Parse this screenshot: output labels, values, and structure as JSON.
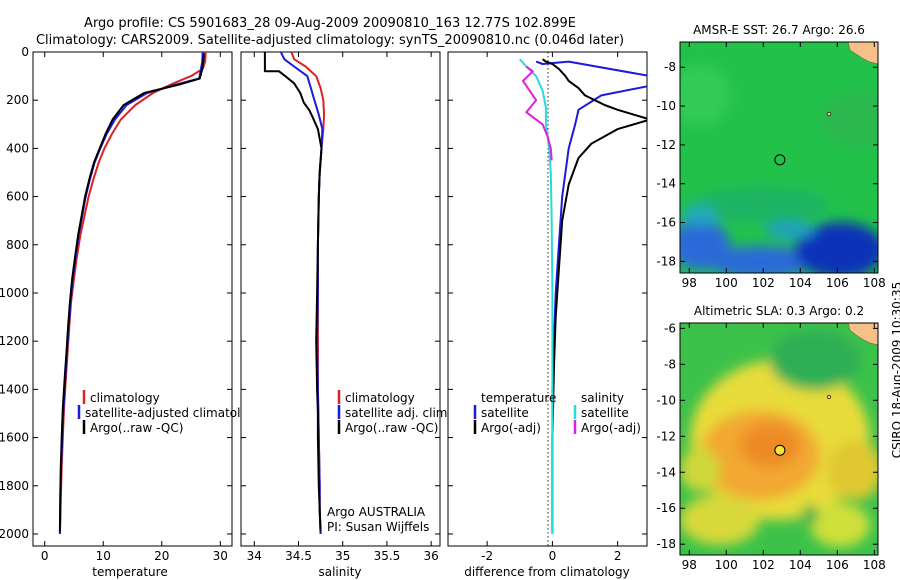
{
  "figure": {
    "title_line1": "Argo profile: CS 5901683_28 09-Aug-2009 20090810_163 12.77S 102.899E",
    "title_line2": "Climatology: CARS2009. Satellite-adjusted climatology: synTS_20090810.nc (0.046d later)",
    "side_label": "CSIRO 18-Aug-2009 10:30:35"
  },
  "chart_data": [
    {
      "type": "line",
      "xlabel": "temperature",
      "ylim": [
        2050,
        0
      ],
      "xlim": [
        -2,
        32
      ],
      "xticks": [
        0,
        10,
        20,
        30
      ],
      "yticks": [
        0,
        200,
        400,
        600,
        800,
        1000,
        1200,
        1400,
        1600,
        1800,
        2000
      ],
      "legend": [
        "climatology",
        "satellite-adjusted climatology",
        "Argo(..raw -QC)"
      ],
      "series": [
        {
          "name": "climatology",
          "color": "#dd2222",
          "x": [
            27.5,
            27.4,
            27.0,
            25.0,
            22.0,
            18.5,
            15.5,
            13.0,
            11.5,
            10.2,
            9.2,
            8.3,
            7.5,
            6.8,
            6.1,
            5.5,
            5.0,
            4.5,
            4.2,
            3.9,
            3.6,
            3.3,
            3.1,
            2.9,
            2.75,
            2.6
          ],
          "y": [
            0,
            40,
            70,
            100,
            130,
            170,
            220,
            280,
            340,
            400,
            460,
            530,
            600,
            680,
            760,
            850,
            940,
            1040,
            1140,
            1250,
            1360,
            1480,
            1600,
            1720,
            1850,
            2000
          ]
        },
        {
          "name": "satellite-adjusted climatology",
          "color": "#1a1add",
          "x": [
            27.0,
            26.9,
            26.7,
            26.4,
            22.5,
            17.5,
            14.0,
            12.0,
            10.6,
            9.5,
            8.5,
            7.7,
            7.0,
            6.4,
            5.8,
            5.3,
            4.8,
            4.4,
            4.1,
            3.8,
            3.5,
            3.2,
            3.0,
            2.8,
            2.7,
            2.6
          ],
          "y": [
            0,
            40,
            70,
            110,
            135,
            170,
            220,
            280,
            340,
            400,
            460,
            530,
            600,
            680,
            760,
            850,
            940,
            1040,
            1140,
            1250,
            1360,
            1480,
            1600,
            1720,
            1850,
            2000
          ]
        },
        {
          "name": "Argo(..raw -QC)",
          "color": "#000000",
          "x": [
            27.2,
            27.1,
            26.9,
            26.5,
            23.0,
            17.0,
            13.5,
            11.6,
            10.4,
            9.4,
            8.4,
            7.6,
            6.9,
            6.3,
            5.7,
            5.2,
            4.7,
            4.3,
            4.0,
            3.7,
            3.4,
            3.1,
            2.9,
            2.75,
            2.65,
            2.6
          ],
          "y": [
            5,
            40,
            70,
            110,
            135,
            170,
            220,
            280,
            340,
            400,
            460,
            530,
            600,
            680,
            760,
            850,
            940,
            1040,
            1140,
            1250,
            1360,
            1480,
            1600,
            1720,
            1850,
            1990
          ]
        }
      ]
    },
    {
      "type": "line",
      "xlabel": "salinity",
      "ylim": [
        2050,
        0
      ],
      "xlim": [
        33.85,
        36.1
      ],
      "xticks": [
        34,
        34.5,
        35,
        35.5,
        36
      ],
      "legend": [
        "climatology",
        "satellite adj. clim.",
        "Argo(..raw -QC)"
      ],
      "annotation": [
        "Argo AUSTRALIA",
        "PI: Susan Wijffels"
      ],
      "series": [
        {
          "name": "climatology",
          "color": "#dd2222",
          "x": [
            34.42,
            34.45,
            34.58,
            34.7,
            34.75,
            34.78,
            34.79,
            34.78,
            34.76,
            34.74,
            34.73,
            34.72,
            34.72,
            34.72,
            34.72,
            34.73,
            34.74,
            34.74,
            34.75
          ],
          "y": [
            0,
            30,
            60,
            100,
            150,
            200,
            260,
            320,
            400,
            500,
            600,
            800,
            1000,
            1200,
            1400,
            1600,
            1800,
            1900,
            2000
          ]
        },
        {
          "name": "satellite adj. clim.",
          "color": "#1a1add",
          "x": [
            34.3,
            34.34,
            34.45,
            34.6,
            34.64,
            34.68,
            34.73,
            34.77,
            34.76,
            34.74,
            34.73,
            34.72,
            34.72,
            34.71,
            34.72,
            34.73,
            34.74,
            34.74,
            34.75
          ],
          "y": [
            0,
            30,
            60,
            100,
            150,
            200,
            260,
            320,
            400,
            500,
            600,
            800,
            1000,
            1200,
            1400,
            1600,
            1800,
            1900,
            2000
          ]
        },
        {
          "name": "Argo(..raw -QC)",
          "color": "#000000",
          "x": [
            34.12,
            34.12,
            34.28,
            34.35,
            34.45,
            34.52,
            34.56,
            34.62,
            34.66,
            34.72,
            34.76,
            34.74,
            34.73,
            34.72,
            34.71,
            34.7,
            34.71,
            34.72,
            34.72,
            34.73,
            34.74,
            34.75
          ],
          "y": [
            0,
            80,
            80,
            100,
            130,
            170,
            210,
            240,
            270,
            320,
            400,
            500,
            600,
            800,
            1000,
            1200,
            1400,
            1500,
            1600,
            1800,
            1900,
            1990
          ]
        }
      ]
    },
    {
      "type": "line",
      "xlabel": "difference from climatology",
      "ylim": [
        2050,
        0
      ],
      "xlim": [
        -3.2,
        2.9
      ],
      "xticks": [
        -2,
        0,
        2
      ],
      "legend_temperature_title": "temperature",
      "legend_salinity_title": "salinity",
      "legend": [
        "satellite",
        "Argo(-adj)",
        "satellite",
        "Argo(-adj)"
      ],
      "series": [
        {
          "name": "temperature satellite",
          "color": "#1a1add",
          "x": [
            -0.5,
            -0.3,
            0.5,
            3.0,
            3.0,
            1.5,
            0.8,
            0.7,
            0.5,
            0.3,
            0.2,
            0.1,
            0.05,
            0.0,
            0.0,
            0.0,
            0.0
          ],
          "y": [
            40,
            50,
            40,
            100,
            140,
            180,
            240,
            300,
            400,
            600,
            800,
            1000,
            1200,
            1400,
            1600,
            1800,
            2000
          ]
        },
        {
          "name": "temperature Argo(-adj)",
          "color": "#000000",
          "x": [
            -0.3,
            -0.2,
            0.0,
            0.1,
            0.2,
            0.4,
            0.5,
            0.8,
            1.0,
            1.3,
            1.6,
            2.0,
            2.5,
            3.0,
            2.0,
            1.2,
            0.8,
            0.5,
            0.3,
            0.2,
            0.1,
            0.05,
            0.0,
            0.0
          ],
          "y": [
            30,
            40,
            50,
            60,
            70,
            100,
            120,
            150,
            180,
            200,
            220,
            240,
            260,
            280,
            320,
            380,
            440,
            550,
            700,
            900,
            1100,
            1300,
            1600,
            1990
          ]
        },
        {
          "name": "salinity satellite",
          "color": "#22dddd",
          "x": [
            -1.0,
            -0.8,
            -0.5,
            -0.3,
            -0.2,
            -0.2,
            -0.15,
            -0.1,
            -0.05,
            -0.02,
            0.0,
            0.0,
            0.0,
            0.0
          ],
          "y": [
            30,
            60,
            100,
            160,
            230,
            300,
            350,
            400,
            500,
            700,
            1000,
            1400,
            1700,
            2000
          ]
        },
        {
          "name": "salinity Argo(-adj)",
          "color": "#dd22dd",
          "x": [
            -0.8,
            -0.6,
            -0.9,
            -0.7,
            -0.5,
            -0.8,
            -0.3,
            -0.15,
            -0.05,
            -0.02
          ],
          "y": [
            60,
            80,
            120,
            160,
            200,
            250,
            300,
            350,
            400,
            450
          ]
        }
      ]
    },
    {
      "type": "heatmap",
      "title": "AMSR-E SST: 26.7 Argo: 26.6",
      "xticks": [
        98,
        100,
        102,
        104,
        106,
        108
      ],
      "yticks": [
        -8,
        -10,
        -12,
        -14,
        -16,
        -18
      ],
      "xlim": [
        97.5,
        108.2
      ],
      "ylim": [
        -6.7,
        -18.6
      ],
      "marker": {
        "lon": 102.9,
        "lat": -12.77
      }
    },
    {
      "type": "heatmap",
      "title": "Altimetric SLA: 0.3 Argo: 0.2",
      "xticks": [
        98,
        100,
        102,
        104,
        106,
        108
      ],
      "yticks": [
        -6,
        -8,
        -10,
        -12,
        -14,
        -16,
        -18
      ],
      "xlim": [
        97.5,
        108.2
      ],
      "ylim": [
        -5.7,
        -18.6
      ],
      "marker": {
        "lon": 102.9,
        "lat": -12.77
      }
    }
  ]
}
